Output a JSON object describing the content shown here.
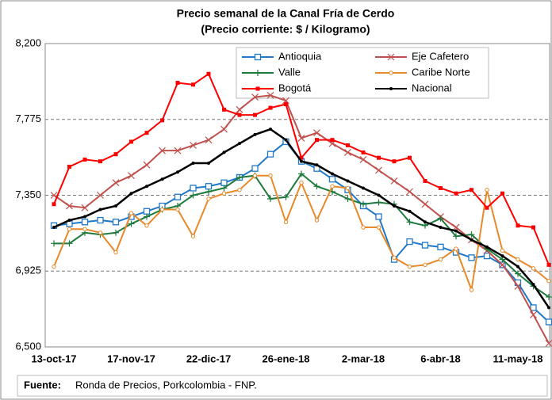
{
  "chart_data": {
    "type": "line",
    "title": "Precio semanal de la Canal Fría de Cerdo",
    "subtitle": "(Precio corriente: $ / Kilogramo)",
    "source_label": "Fuente:",
    "source": "Ronda de Precios, Porkcolombia  - FNP.",
    "categories": [
      "13-oct-17",
      null,
      null,
      null,
      null,
      "17-nov-17",
      null,
      null,
      null,
      null,
      "22-dic-17",
      null,
      null,
      null,
      null,
      "26-ene-18",
      null,
      null,
      null,
      null,
      "2-mar-18",
      null,
      null,
      null,
      null,
      "6-abr-18",
      null,
      null,
      null,
      null,
      "11-may-18",
      null,
      null
    ],
    "ylim": [
      6500,
      8200
    ],
    "yticks": [
      {
        "value": 6500,
        "label": "6,500"
      },
      {
        "value": 6925,
        "label": "6,925"
      },
      {
        "value": 7350,
        "label": "7,350"
      },
      {
        "value": 7775,
        "label": "7,775"
      },
      {
        "value": 8200,
        "label": "8,200"
      }
    ],
    "grid": true,
    "series": [
      {
        "name": "Antioquia",
        "color": "#1f78c8",
        "marker": "square",
        "values": [
          7180,
          7190,
          7200,
          7210,
          7200,
          7230,
          7260,
          7290,
          7340,
          7390,
          7400,
          7420,
          7450,
          7500,
          7580,
          7650,
          7540,
          7500,
          7440,
          7380,
          7290,
          7230,
          6990,
          7090,
          7070,
          7060,
          7030,
          7000,
          7010,
          6960,
          6860,
          6720,
          6640
        ]
      },
      {
        "name": "Eje Cafetero",
        "color": "#c0504d",
        "marker": "x",
        "values": [
          7350,
          7290,
          7280,
          7350,
          7420,
          7460,
          7520,
          7600,
          7600,
          7630,
          7660,
          7720,
          7830,
          7900,
          7910,
          7880,
          7670,
          7700,
          7640,
          7590,
          7550,
          7490,
          7430,
          7370,
          7300,
          7230,
          7170,
          7100,
          7040,
          6960,
          6840,
          6680,
          6520
        ]
      },
      {
        "name": "Valle",
        "color": "#1e7a3c",
        "marker": "plus",
        "values": [
          7080,
          7080,
          7140,
          7130,
          7140,
          7190,
          7230,
          7270,
          7290,
          7350,
          7370,
          7390,
          7450,
          7460,
          7330,
          7340,
          7470,
          7400,
          7370,
          7330,
          7300,
          7310,
          7300,
          7200,
          7180,
          7220,
          7120,
          7130,
          7050,
          6990,
          6910,
          6840,
          6780
        ]
      },
      {
        "name": "Caribe Norte",
        "color": "#e8892a",
        "marker": "circle",
        "values": [
          6950,
          7160,
          7160,
          7140,
          7030,
          7250,
          7180,
          7270,
          7270,
          7120,
          7330,
          7360,
          7380,
          7460,
          7460,
          7200,
          7420,
          7210,
          7400,
          7390,
          7170,
          7170,
          7000,
          6950,
          6960,
          6990,
          7050,
          6820,
          7380,
          7040,
          6990,
          6940,
          6870
        ]
      },
      {
        "name": "Bogotá",
        "color": "#ff0000",
        "marker": "smallsquare",
        "values": [
          7300,
          7510,
          7550,
          7540,
          7580,
          7650,
          7700,
          7770,
          7980,
          7970,
          8030,
          7830,
          7800,
          7800,
          7840,
          7860,
          7560,
          7660,
          7660,
          7630,
          7590,
          7560,
          7540,
          7560,
          7430,
          7390,
          7360,
          7380,
          7280,
          7360,
          7180,
          7170,
          6960
        ]
      },
      {
        "name": "Nacional",
        "color": "#000000",
        "marker": "dot",
        "values": [
          7170,
          7210,
          7230,
          7270,
          7290,
          7360,
          7400,
          7440,
          7480,
          7530,
          7530,
          7590,
          7640,
          7690,
          7720,
          7660,
          7540,
          7520,
          7470,
          7430,
          7390,
          7350,
          7290,
          7260,
          7200,
          7170,
          7150,
          7100,
          7060,
          7010,
          6950,
          6850,
          6720
        ]
      }
    ]
  }
}
